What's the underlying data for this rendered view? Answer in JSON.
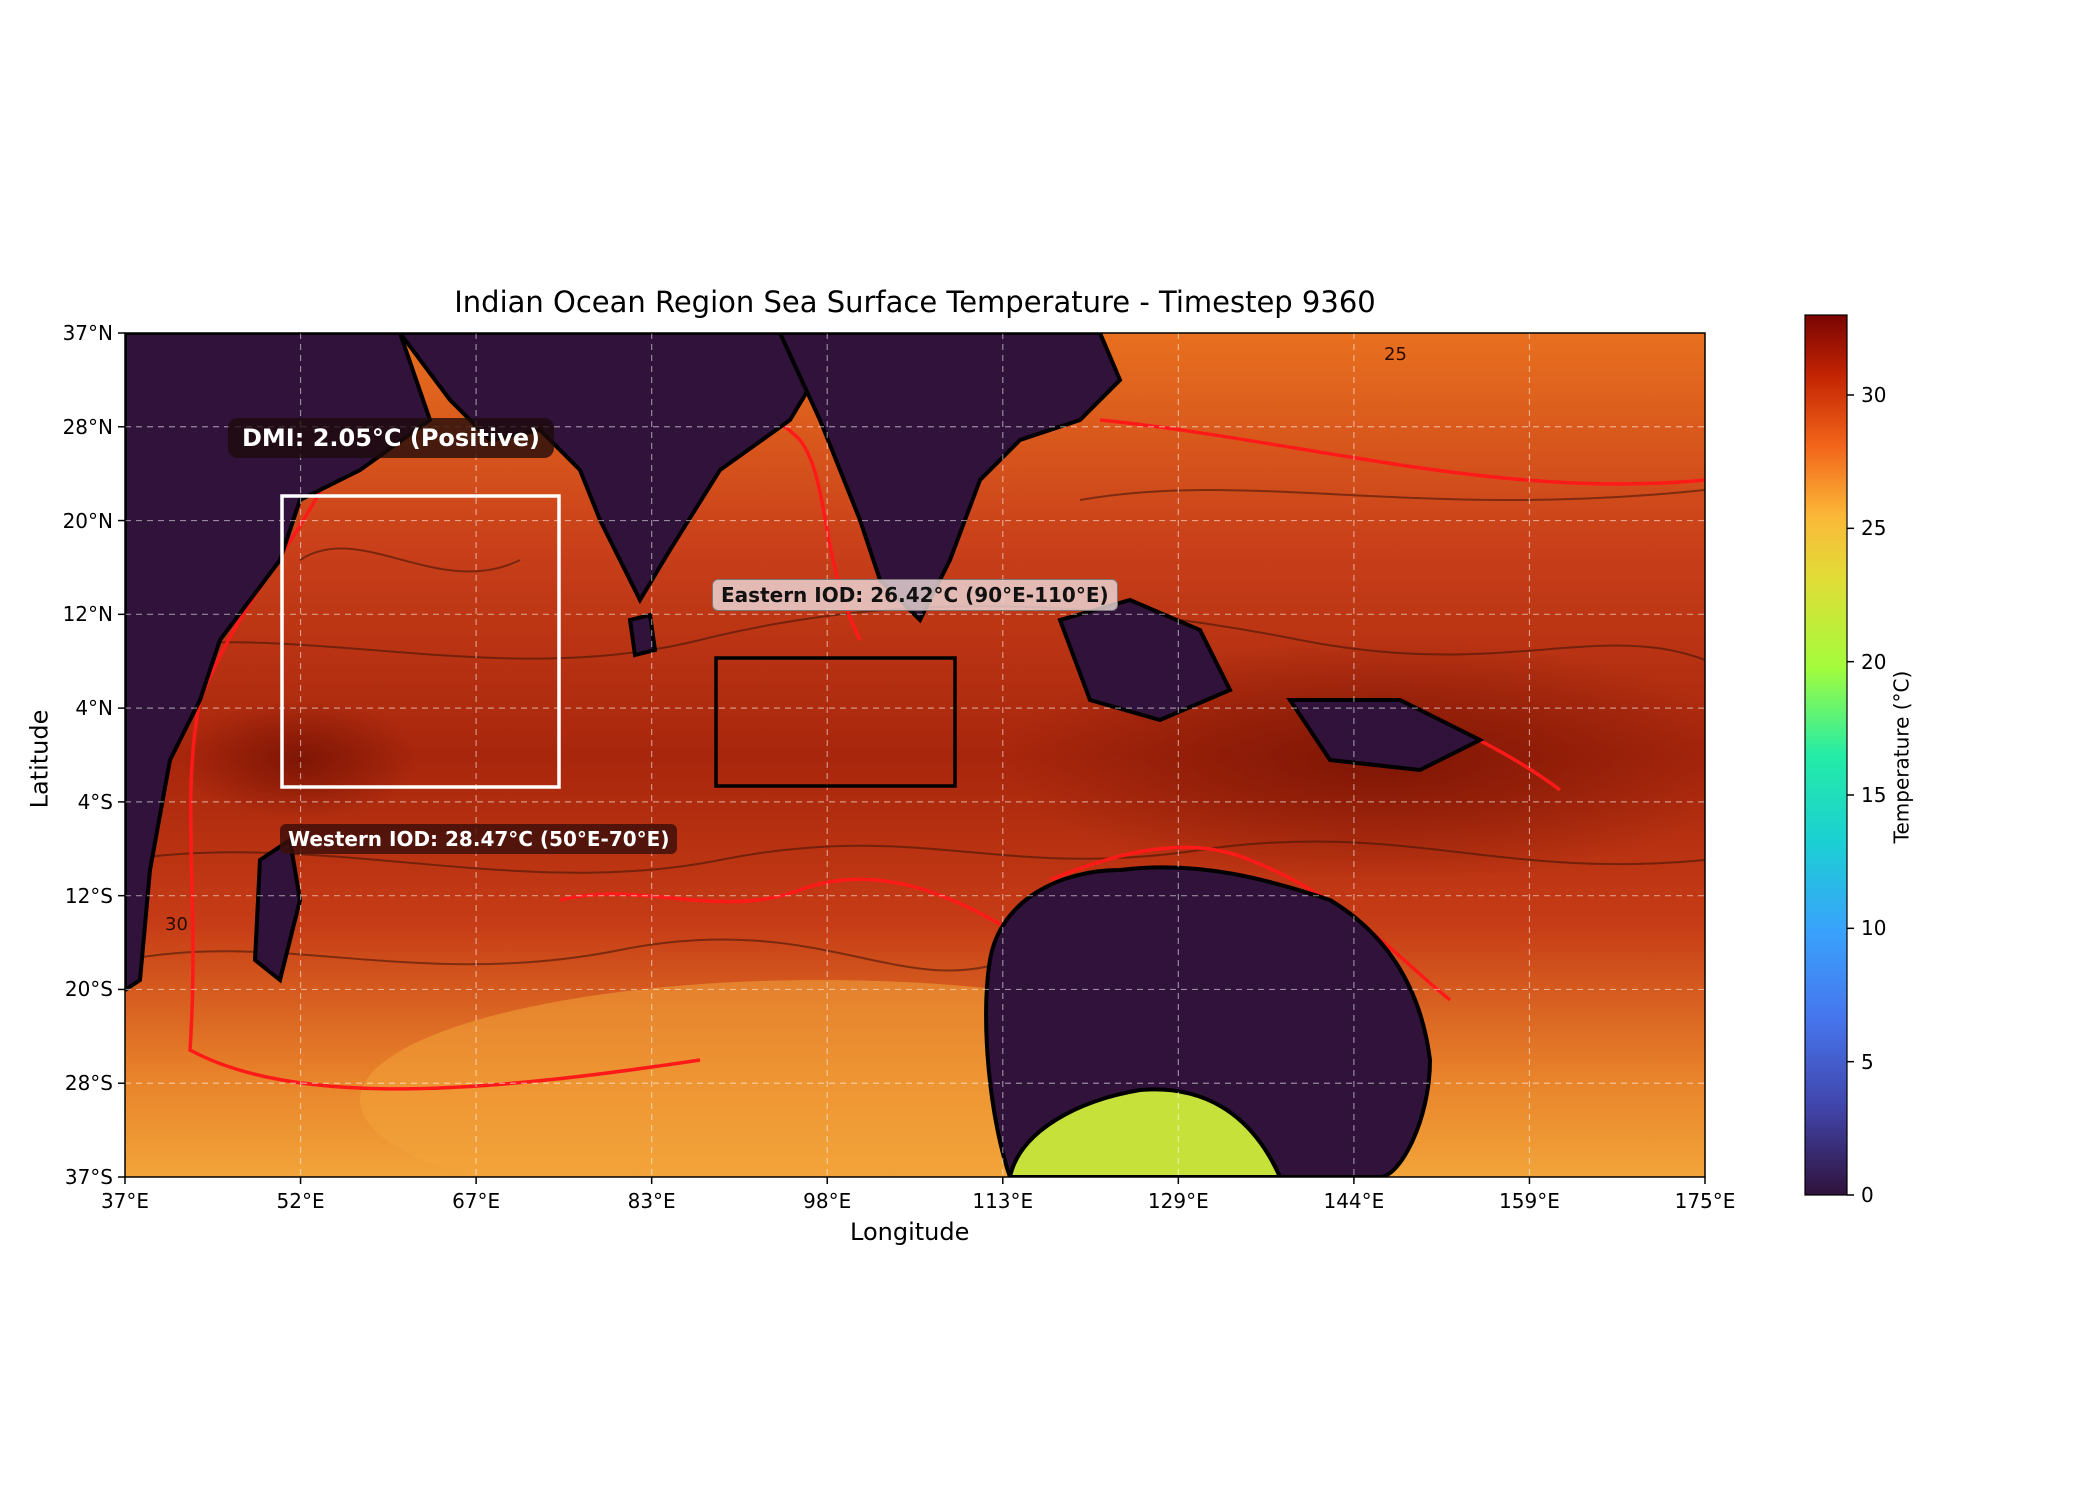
{
  "title": "Indian Ocean Region Sea Surface Temperature - Timestep 9360",
  "axes": {
    "xlabel": "Longitude",
    "ylabel": "Latitude",
    "x_ticks": [
      "37°E",
      "52°E",
      "67°E",
      "83°E",
      "98°E",
      "113°E",
      "129°E",
      "144°E",
      "159°E",
      "175°E"
    ],
    "y_ticks": [
      "37°N",
      "28°N",
      "20°N",
      "12°N",
      "4°N",
      "4°S",
      "12°S",
      "20°S",
      "28°S",
      "37°S"
    ],
    "xlim": [
      37,
      175
    ],
    "ylim": [
      -37,
      37
    ]
  },
  "colorbar": {
    "label": "Temperature (°C)",
    "ticks": [
      "0",
      "5",
      "10",
      "15",
      "20",
      "25",
      "30"
    ],
    "range": [
      0,
      33
    ],
    "colormap": "turbo"
  },
  "annotations": {
    "dmi": "DMI: 2.05°C (Positive)",
    "western": "Western IOD: 28.47°C (50°E-70°E)",
    "eastern": "Eastern IOD: 26.42°C (90°E-110°E)"
  },
  "chart_data": {
    "type": "heatmap",
    "title": "Indian Ocean Region Sea Surface Temperature - Timestep 9360",
    "xlabel": "Longitude",
    "ylabel": "Latitude",
    "xlim": [
      37,
      175
    ],
    "ylim": [
      -37,
      37
    ],
    "value_label": "Temperature (°C)",
    "value_range": [
      0,
      33
    ],
    "grid": true,
    "contour_labels": [
      "30",
      "25"
    ],
    "regions": [
      {
        "name": "Western IOD",
        "lon": [
          50,
          70
        ],
        "lat": [
          -2,
          22
        ],
        "mean": 28.47
      },
      {
        "name": "Eastern IOD",
        "lon": [
          90,
          110
        ],
        "lat": [
          -2,
          9
        ],
        "mean": 26.42
      }
    ],
    "dmi": 2.05,
    "dmi_phase": "Positive"
  },
  "colors": {
    "land": "#30123b",
    "ocean_warm": "#d2441a",
    "ocean_hot": "#9a1c06",
    "ocean_cool": "#f08a2a",
    "contour_30": "#ff1a1a",
    "coast": "#000000",
    "west_box": "#ffffff",
    "east_box": "#000000"
  }
}
